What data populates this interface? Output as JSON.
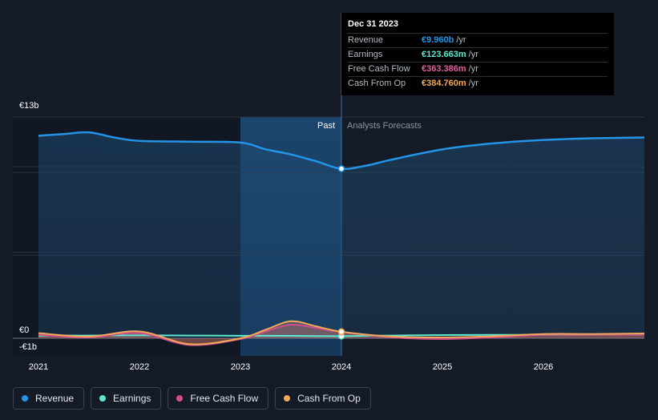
{
  "chart_data": {
    "type": "line",
    "y_axis": {
      "top_label": "€13b",
      "zero_label": "€0",
      "bottom_label": "-€1b",
      "ylim": [
        -1,
        13
      ]
    },
    "x_axis": {
      "ticks": [
        "2021",
        "2022",
        "2023",
        "2024",
        "2025",
        "2026"
      ],
      "xlim": [
        2021.0,
        2027.0
      ]
    },
    "regions": {
      "past_label": "Past",
      "forecast_label": "Analysts Forecasts",
      "divider_x": 2024.0,
      "highlight_start_x": 2023.0
    },
    "colors": {
      "Revenue": "#2394e6",
      "Earnings": "#5de8d0",
      "Free Cash Flow": "#d24d8b",
      "Cash From Op": "#f0a85a"
    },
    "series": [
      {
        "name": "Revenue",
        "points": [
          [
            2021.0,
            11.9
          ],
          [
            2021.25,
            12.0
          ],
          [
            2021.5,
            12.1
          ],
          [
            2021.75,
            11.8
          ],
          [
            2022.0,
            11.6
          ],
          [
            2022.5,
            11.55
          ],
          [
            2023.0,
            11.5
          ],
          [
            2023.25,
            11.1
          ],
          [
            2023.5,
            10.8
          ],
          [
            2023.75,
            10.4
          ],
          [
            2024.0,
            9.96
          ],
          [
            2024.25,
            10.15
          ],
          [
            2024.5,
            10.5
          ],
          [
            2025.0,
            11.1
          ],
          [
            2025.5,
            11.45
          ],
          [
            2026.0,
            11.65
          ],
          [
            2026.5,
            11.75
          ],
          [
            2027.0,
            11.8
          ]
        ]
      },
      {
        "name": "Earnings",
        "points": [
          [
            2021.0,
            0.15
          ],
          [
            2021.5,
            0.16
          ],
          [
            2022.0,
            0.17
          ],
          [
            2022.5,
            0.16
          ],
          [
            2023.0,
            0.15
          ],
          [
            2023.5,
            0.14
          ],
          [
            2024.0,
            0.124
          ],
          [
            2024.5,
            0.16
          ],
          [
            2025.0,
            0.19
          ],
          [
            2025.5,
            0.2
          ],
          [
            2026.0,
            0.2
          ],
          [
            2026.5,
            0.21
          ],
          [
            2027.0,
            0.22
          ]
        ]
      },
      {
        "name": "Free Cash Flow",
        "points": [
          [
            2021.0,
            0.2
          ],
          [
            2021.5,
            0.05
          ],
          [
            2022.0,
            0.3
          ],
          [
            2022.5,
            -0.4
          ],
          [
            2023.0,
            -0.05
          ],
          [
            2023.25,
            0.4
          ],
          [
            2023.5,
            0.8
          ],
          [
            2023.75,
            0.6
          ],
          [
            2024.0,
            0.363
          ],
          [
            2024.5,
            0.05
          ],
          [
            2025.0,
            -0.05
          ],
          [
            2025.5,
            0.05
          ],
          [
            2026.0,
            0.2
          ],
          [
            2026.5,
            0.2
          ],
          [
            2027.0,
            0.22
          ]
        ]
      },
      {
        "name": "Cash From Op",
        "points": [
          [
            2021.0,
            0.3
          ],
          [
            2021.5,
            0.1
          ],
          [
            2022.0,
            0.4
          ],
          [
            2022.5,
            -0.35
          ],
          [
            2023.0,
            0.0
          ],
          [
            2023.25,
            0.5
          ],
          [
            2023.5,
            1.0
          ],
          [
            2023.75,
            0.7
          ],
          [
            2024.0,
            0.385
          ],
          [
            2024.5,
            0.1
          ],
          [
            2025.0,
            0.05
          ],
          [
            2025.5,
            0.12
          ],
          [
            2026.0,
            0.25
          ],
          [
            2026.5,
            0.25
          ],
          [
            2027.0,
            0.28
          ]
        ]
      }
    ],
    "highlight_x": 2024.0
  },
  "tooltip": {
    "date": "Dec 31 2023",
    "rows": [
      {
        "name": "Revenue",
        "value": "€9.960b",
        "unit": "/yr"
      },
      {
        "name": "Earnings",
        "value": "€123.663m",
        "unit": "/yr"
      },
      {
        "name": "Free Cash Flow",
        "value": "€363.386m",
        "unit": "/yr"
      },
      {
        "name": "Cash From Op",
        "value": "€384.760m",
        "unit": "/yr"
      }
    ]
  },
  "legend": [
    {
      "label": "Revenue",
      "color": "#2394e6"
    },
    {
      "label": "Earnings",
      "color": "#5de8d0"
    },
    {
      "label": "Free Cash Flow",
      "color": "#d24d8b"
    },
    {
      "label": "Cash From Op",
      "color": "#f0a85a"
    }
  ]
}
